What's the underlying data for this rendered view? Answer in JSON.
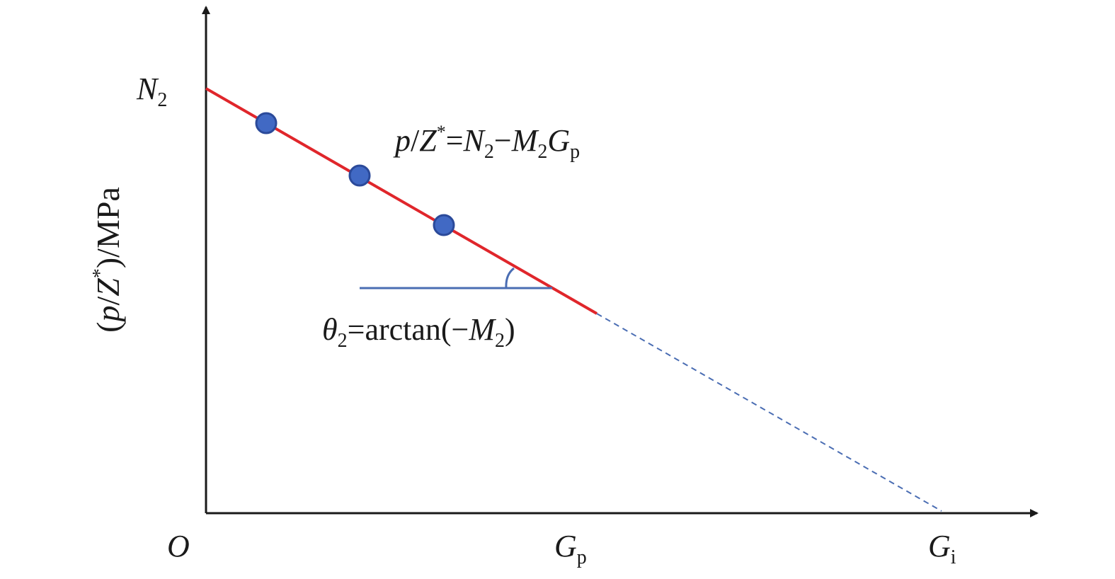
{
  "axes": {
    "y_label": {
      "open": "(",
      "p": "p",
      "slash": "/",
      "Z": "Z",
      "star": "*",
      "close": ")/MPa"
    },
    "origin_label": "O",
    "y_intercept_label": {
      "main": "N",
      "sub": "2"
    },
    "x_tick_gp": {
      "main": "G",
      "sub": "p"
    },
    "x_tick_gi": {
      "main": "G",
      "sub": "i"
    }
  },
  "equation": {
    "p": "p",
    "slash": "/",
    "Z": "Z",
    "star": "*",
    "eq": "=",
    "N": "N",
    "N_sub": "2",
    "minus": "−",
    "M": "M",
    "M_sub": "2",
    "G": "G",
    "G_sub": "p"
  },
  "angle_label": {
    "theta": "θ",
    "theta_sub": "2",
    "eq_arctan": "=arctan(−",
    "M": "M",
    "M_sub": "2",
    "close": ")"
  },
  "colors": {
    "axis": "#1a1a1a",
    "fit_line": "#e0262b",
    "extrapolation": "#4a6db3",
    "points_fill": "#4169c4",
    "points_stroke": "#2b4a9a",
    "angle_marker": "#4a6db3"
  }
}
